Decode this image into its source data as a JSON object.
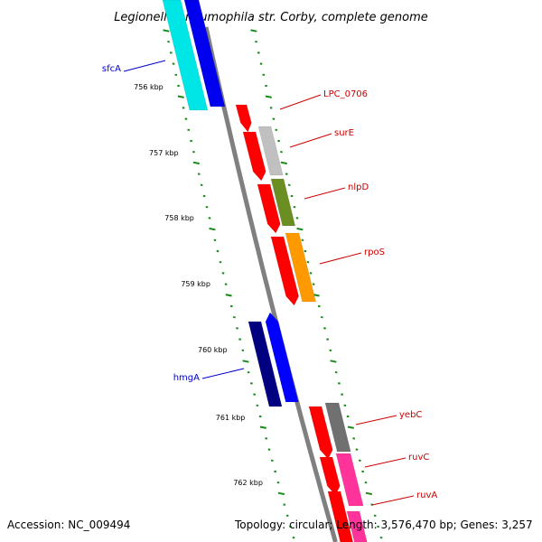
{
  "title": "Legionella pneumophila str. Corby, complete genome",
  "footer": {
    "accession": "Accession: NC_009494",
    "topology": "Topology: circular; Length: 3,576,470 bp; Genes: 3,257"
  },
  "colors": {
    "backbone": "#808080",
    "ticks": "#1a8a1a",
    "label_forward": "#cc0000",
    "label_reverse": "#0000cc"
  },
  "scale_labels": [
    "756 kbp",
    "757 kbp",
    "758 kbp",
    "759 kbp",
    "760 kbp",
    "761 kbp",
    "762 kbp"
  ],
  "gene_labels": [
    {
      "name": "sfcA",
      "strand": "reverse"
    },
    {
      "name": "LPC_0706",
      "strand": "forward"
    },
    {
      "name": "surE",
      "strand": "forward"
    },
    {
      "name": "nlpD",
      "strand": "forward"
    },
    {
      "name": "rpoS",
      "strand": "forward"
    },
    {
      "name": "hmgA",
      "strand": "reverse"
    },
    {
      "name": "yebC",
      "strand": "forward"
    },
    {
      "name": "ruvC",
      "strand": "forward"
    },
    {
      "name": "ruvA",
      "strand": "forward"
    }
  ],
  "features": {
    "cds_color": "#ff0000",
    "gene_colors": {
      "sfcA": "#00e5e5",
      "sfcA_inner": "#0000ee",
      "surE": "#c0c0c0",
      "nlpD": "#6b8e23",
      "rpoS": "#ff9900",
      "hmgA_outer": "#000080",
      "hmgA_inner": "#0000ff",
      "yebC": "#707070",
      "ruvC": "#ff3399"
    }
  }
}
